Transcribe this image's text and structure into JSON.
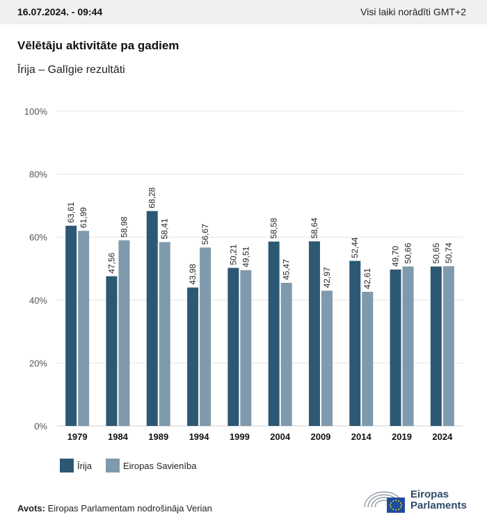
{
  "header": {
    "timestamp": "16.07.2024. - 09:44",
    "timezone_note": "Visi laiki norādīti GMT+2"
  },
  "title": "Vēlētāju aktivitāte pa gadiem",
  "subtitle": "Īrija – Galīgie rezultāti",
  "colors": {
    "ireland": "#2c5874",
    "eu": "#7f9aac",
    "grid": "#e4e4e4",
    "logo": "#2e4a6b"
  },
  "chart_data": {
    "type": "bar",
    "categories": [
      "1979",
      "1984",
      "1989",
      "1994",
      "1999",
      "2004",
      "2009",
      "2014",
      "2019",
      "2024"
    ],
    "series": [
      {
        "name": "Īrija",
        "values": [
          63.61,
          47.56,
          68.28,
          43.98,
          50.21,
          58.58,
          58.64,
          52.44,
          49.7,
          50.65
        ],
        "labels": [
          "63,61",
          "47,56",
          "68,28",
          "43,98",
          "50,21",
          "58,58",
          "58,64",
          "52,44",
          "49,70",
          "50,65"
        ]
      },
      {
        "name": "Eiropas Savienība",
        "values": [
          61.99,
          58.98,
          58.41,
          56.67,
          49.51,
          45.47,
          42.97,
          42.61,
          50.66,
          50.74
        ],
        "labels": [
          "61,99",
          "58,98",
          "58,41",
          "56,67",
          "49,51",
          "45,47",
          "42,97",
          "42,61",
          "50,66",
          "50,74"
        ]
      }
    ],
    "ylim": [
      0,
      100
    ],
    "yticks": [
      "0%",
      "20%",
      "40%",
      "60%",
      "80%",
      "100%"
    ],
    "grid": true,
    "legend_position": "bottom-left"
  },
  "legend": {
    "ireland_label": "Īrija",
    "eu_label": "Eiropas Savienība"
  },
  "source": {
    "label": "Avots:",
    "text": " Eiropas Parlamentam nodrošināja Verian"
  },
  "logo": {
    "line1": "Eiropas",
    "line2": "Parlaments"
  }
}
